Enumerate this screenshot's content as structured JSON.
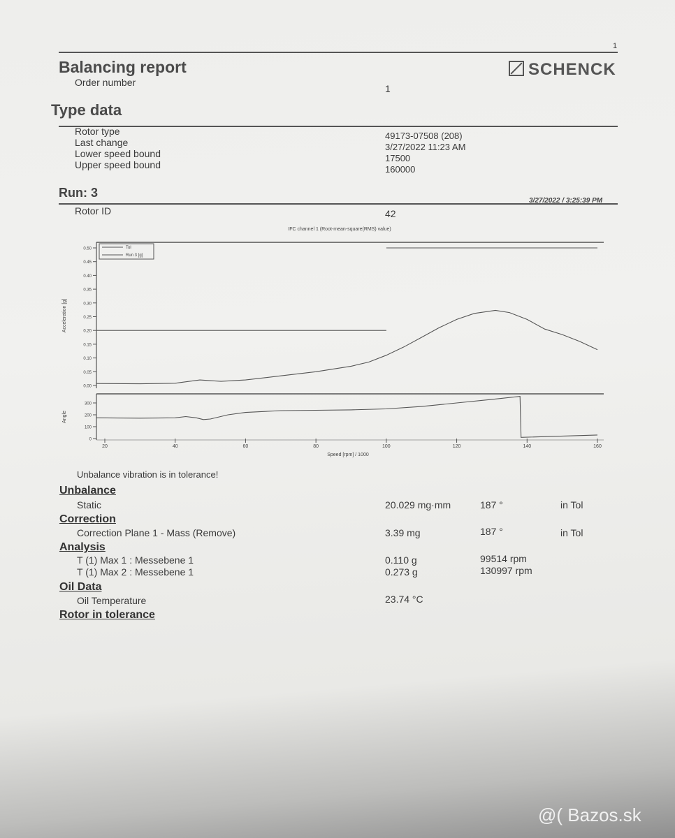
{
  "page_number": "1",
  "header": {
    "title": "Balancing report",
    "order_label": "Order number",
    "order_value": "1",
    "logo": "SCHENCK"
  },
  "type_data": {
    "title": "Type data",
    "rows": [
      {
        "label": "Rotor type",
        "value": "49173-07508 (208)"
      },
      {
        "label": "Last change",
        "value": "3/27/2022 11:23 AM"
      },
      {
        "label": "Lower speed bound",
        "value": "17500"
      },
      {
        "label": "Upper speed bound",
        "value": "160000"
      }
    ]
  },
  "run": {
    "title": "Run: 3",
    "timestamp": "3/27/2022 / 3:25:39 PM",
    "rotor_id_label": "Rotor ID",
    "rotor_id_value": "42"
  },
  "chart_data": {
    "type": "line",
    "title": "IFC channel 1 (Root-mean-square(RMS) value)",
    "xlabel": "Speed [rpm] / 1000",
    "xlim": [
      17.5,
      160
    ],
    "xticks": [
      "20",
      "40",
      "60",
      "80",
      "100",
      "120",
      "140",
      "160"
    ],
    "legend": {
      "placement": "top-left",
      "entries": [
        "Tol",
        "Run 3 [g]"
      ]
    },
    "panels": [
      {
        "ylabel": "Acceleration [g]",
        "ylim": [
          0,
          0.52
        ],
        "yticks": [
          "0.00",
          "0.05",
          "0.10",
          "0.15",
          "0.20",
          "0.25",
          "0.30",
          "0.35",
          "0.40",
          "0.45",
          "0.50"
        ],
        "series": [
          {
            "name": "Tol",
            "points": [
              [
                17.5,
                0.2
              ],
              [
                100,
                0.2
              ],
              [
                100,
                null
              ],
              [
                100,
                0.5
              ],
              [
                160,
                0.5
              ]
            ]
          },
          {
            "name": "Run 3 [g]",
            "points": [
              [
                17.5,
                0.007
              ],
              [
                30,
                0.006
              ],
              [
                40,
                0.008
              ],
              [
                47,
                0.02
              ],
              [
                53,
                0.015
              ],
              [
                60,
                0.02
              ],
              [
                70,
                0.035
              ],
              [
                80,
                0.05
              ],
              [
                90,
                0.07
              ],
              [
                95,
                0.085
              ],
              [
                100,
                0.11
              ],
              [
                105,
                0.14
              ],
              [
                110,
                0.175
              ],
              [
                115,
                0.21
              ],
              [
                120,
                0.24
              ],
              [
                125,
                0.262
              ],
              [
                131,
                0.273
              ],
              [
                135,
                0.265
              ],
              [
                140,
                0.24
              ],
              [
                145,
                0.205
              ],
              [
                150,
                0.185
              ],
              [
                155,
                0.16
              ],
              [
                160,
                0.13
              ]
            ]
          }
        ]
      },
      {
        "ylabel": "Angle",
        "ylim": [
          0,
          360
        ],
        "yticks": [
          "0",
          "100",
          "200",
          "300"
        ],
        "series": [
          {
            "points": [
              [
                17.5,
                175
              ],
              [
                30,
                172
              ],
              [
                40,
                175
              ],
              [
                43,
                185
              ],
              [
                46,
                175
              ],
              [
                48,
                160
              ],
              [
                50,
                165
              ],
              [
                55,
                200
              ],
              [
                60,
                220
              ],
              [
                70,
                235
              ],
              [
                80,
                238
              ],
              [
                90,
                242
              ],
              [
                100,
                250
              ],
              [
                110,
                270
              ],
              [
                120,
                300
              ],
              [
                130,
                330
              ],
              [
                138,
                355
              ],
              [
                138.3,
                10
              ],
              [
                160,
                30
              ]
            ]
          }
        ]
      }
    ]
  },
  "tolerance_message": "Unbalance vibration is in tolerance!",
  "unbalance": {
    "title": "Unbalance",
    "rows": [
      {
        "label": "Static",
        "value": "20.029 mg·mm",
        "angle": "187 °",
        "status": "in Tol"
      }
    ]
  },
  "correction": {
    "title": "Correction",
    "rows": [
      {
        "label": "Correction Plane 1 - Mass (Remove)",
        "value": "3.39 mg",
        "angle": "187 °",
        "status": "in Tol"
      }
    ]
  },
  "analysis": {
    "title": "Analysis",
    "rows": [
      {
        "label": "T (1) Max 1 : Messebene 1",
        "value": "0.110 g",
        "speed": "99514 rpm"
      },
      {
        "label": "T (1) Max 2 : Messebene 1",
        "value": "0.273 g",
        "speed": "130997 rpm"
      }
    ]
  },
  "oil_data": {
    "title": "Oil Data",
    "rows": [
      {
        "label": "Oil Temperature",
        "value": "23.74 °C"
      }
    ]
  },
  "result": "Rotor in tolerance",
  "watermark": "@( Bazos.sk"
}
